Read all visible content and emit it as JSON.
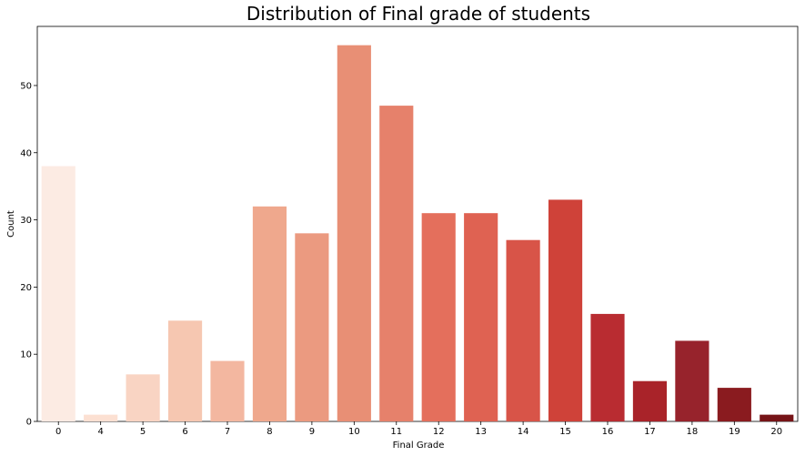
{
  "chart_data": {
    "type": "bar",
    "title": "Distribution of Final grade of students",
    "xlabel": "Final Grade",
    "ylabel": "Count",
    "categories": [
      "0",
      "4",
      "5",
      "6",
      "7",
      "8",
      "9",
      "10",
      "11",
      "12",
      "13",
      "14",
      "15",
      "16",
      "17",
      "18",
      "19",
      "20"
    ],
    "values": [
      38,
      1,
      7,
      15,
      9,
      32,
      28,
      56,
      47,
      31,
      31,
      27,
      33,
      16,
      6,
      12,
      5,
      1
    ],
    "colors": [
      "#fcebe3",
      "#fce0d2",
      "#f9d4c3",
      "#f6c7b1",
      "#f3b7a0",
      "#efa88d",
      "#eb9a80",
      "#e88f75",
      "#e6816b",
      "#e46f5c",
      "#df6252",
      "#d85448",
      "#cf4239",
      "#b92c31",
      "#a92329",
      "#97232c",
      "#8a1b1f",
      "#761417"
    ],
    "yticks": [
      0,
      10,
      20,
      30,
      40,
      50
    ],
    "ylim": [
      0,
      58.8
    ],
    "grid": false,
    "legend": "none"
  }
}
